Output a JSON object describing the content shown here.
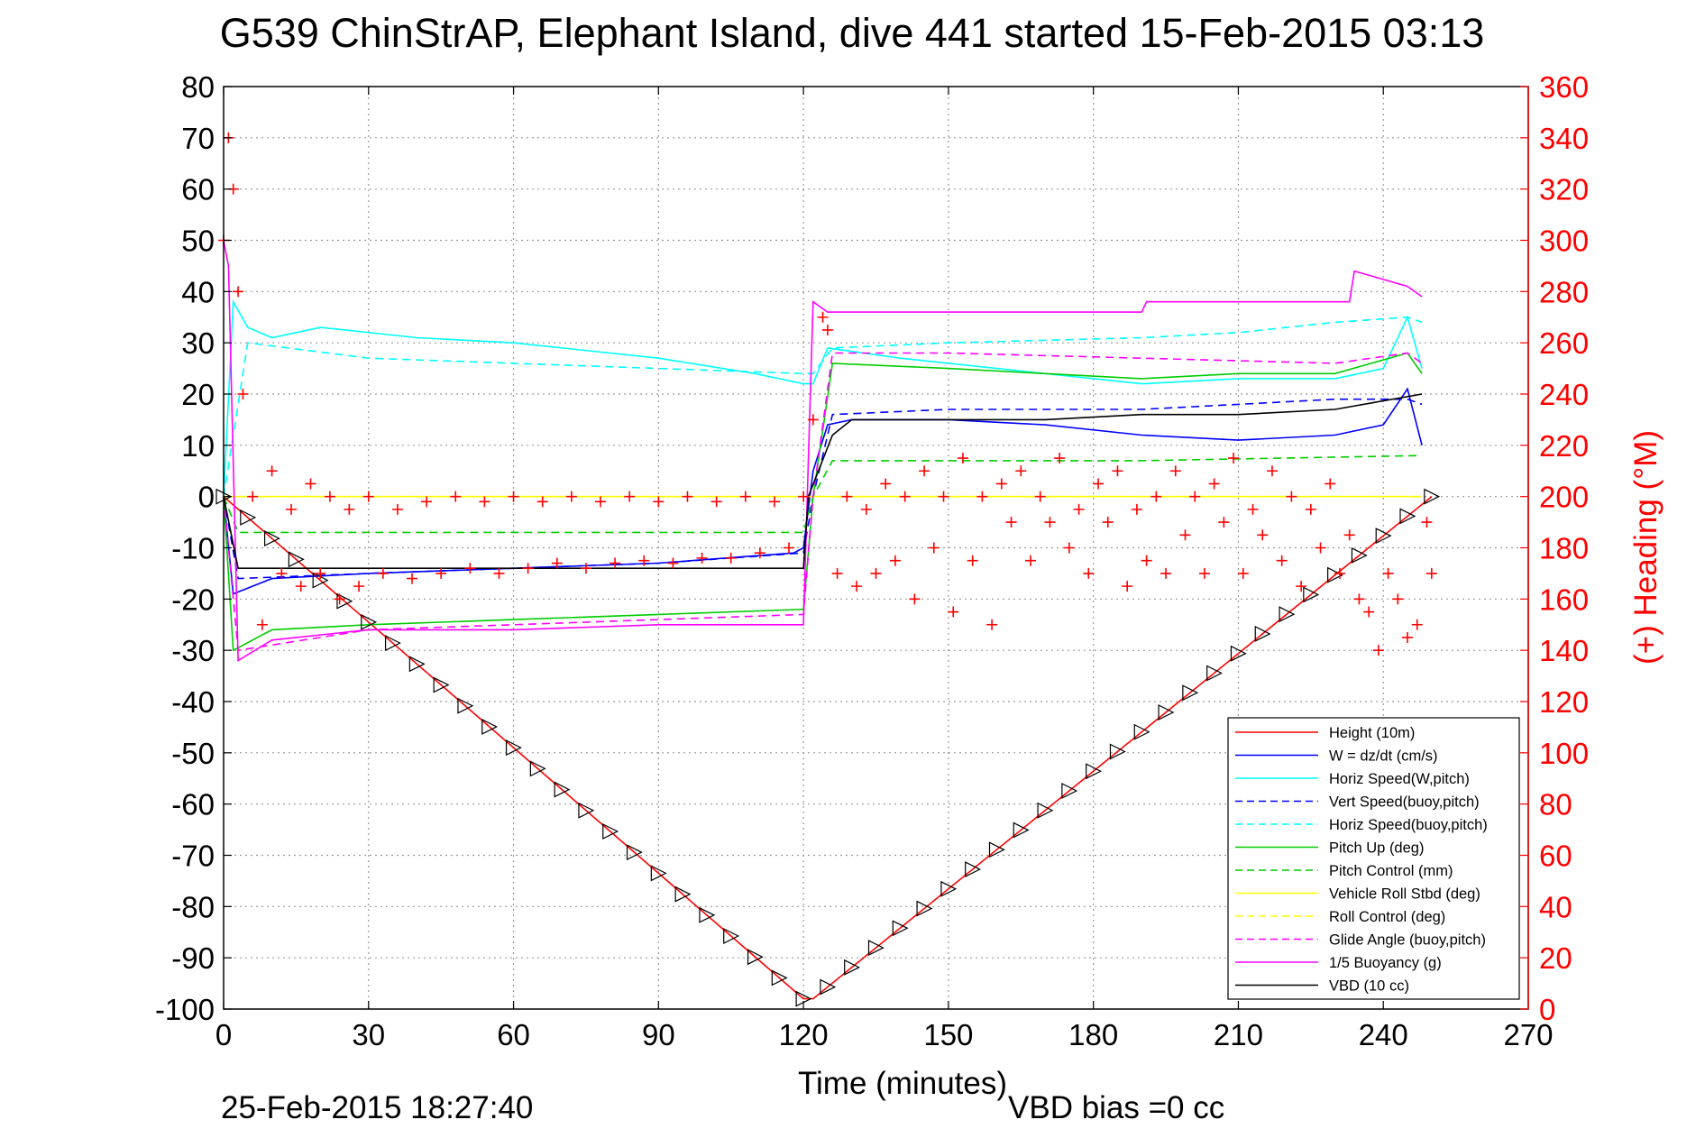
{
  "title": "G539 ChinStrAP, Elephant Island, dive 441 started 15-Feb-2015 03:13",
  "footer": {
    "timestamp": "25-Feb-2015 18:27:40",
    "vbd_bias": "VBD bias =0 cc"
  },
  "chart_data": {
    "type": "line",
    "title": "G539 ChinStrAP, Elephant Island, dive 441 started 15-Feb-2015 03:13",
    "xlabel": "Time (minutes)",
    "ylabel": "",
    "y2label": "(+) Heading (°M)",
    "xlim": [
      0,
      270
    ],
    "ylim": [
      -100,
      80
    ],
    "y2lim": [
      0,
      360
    ],
    "xticks": [
      0,
      30,
      60,
      90,
      120,
      150,
      180,
      210,
      240,
      270
    ],
    "yticks": [
      80,
      70,
      60,
      50,
      40,
      30,
      20,
      10,
      0,
      -10,
      -20,
      -30,
      -40,
      -50,
      -60,
      -70,
      -80,
      -90,
      -100
    ],
    "y2ticks": [
      360,
      340,
      320,
      300,
      280,
      260,
      240,
      220,
      200,
      180,
      160,
      140,
      120,
      100,
      80,
      60,
      40,
      20,
      0
    ],
    "grid": true,
    "legend_position": "bottom-right",
    "series": [
      {
        "name": "Height (10m)",
        "color": "#ff0000",
        "dash": "solid",
        "x": [
          0,
          120,
          122,
          250
        ],
        "y": [
          0,
          -98,
          -98,
          0
        ]
      },
      {
        "name": "W = dz/dt (cm/s)",
        "color": "#0000ff",
        "dash": "solid",
        "x": [
          0,
          2,
          10,
          30,
          60,
          90,
          118,
          120,
          122,
          125,
          130,
          150,
          170,
          190,
          210,
          230,
          240,
          245,
          248
        ],
        "y": [
          0,
          -19,
          -16,
          -15,
          -14,
          -13,
          -11,
          -10,
          5,
          14,
          15,
          15,
          14,
          12,
          11,
          12,
          14,
          21,
          10
        ]
      },
      {
        "name": "Horiz Speed(W,pitch)",
        "color": "#00ffff",
        "dash": "solid",
        "x": [
          0,
          2,
          5,
          10,
          20,
          40,
          60,
          90,
          110,
          120,
          122,
          125,
          140,
          170,
          190,
          210,
          230,
          240,
          245,
          248
        ],
        "y": [
          0,
          38,
          33,
          31,
          33,
          31,
          30,
          27,
          24,
          22,
          22,
          29,
          27,
          24,
          22,
          23,
          23,
          25,
          35,
          25
        ]
      },
      {
        "name": "Vert Speed(buoy,pitch)",
        "color": "#0000ff",
        "dash": "dashed",
        "x": [
          0,
          3,
          30,
          60,
          90,
          120,
          122,
          126,
          150,
          170,
          190,
          210,
          230,
          245,
          248
        ],
        "y": [
          0,
          -16,
          -15,
          -14,
          -13,
          -11,
          0,
          16,
          17,
          17,
          17,
          18,
          19,
          19,
          18
        ]
      },
      {
        "name": "Horiz Speed(buoy,pitch)",
        "color": "#00ffff",
        "dash": "dashed",
        "x": [
          0,
          5,
          30,
          60,
          90,
          120,
          122,
          126,
          150,
          190,
          210,
          230,
          245,
          248
        ],
        "y": [
          0,
          30,
          27,
          26,
          25,
          24,
          24,
          29,
          30,
          31,
          32,
          34,
          35,
          34
        ]
      },
      {
        "name": "Pitch Up (deg)",
        "color": "#00cc00",
        "dash": "solid",
        "x": [
          0,
          2,
          10,
          30,
          60,
          90,
          120,
          122,
          126,
          150,
          170,
          190,
          210,
          230,
          245,
          248
        ],
        "y": [
          0,
          -30,
          -26,
          -25,
          -24,
          -23,
          -22,
          0,
          26,
          25,
          24,
          23,
          24,
          24,
          28,
          24
        ]
      },
      {
        "name": "Pitch Control (mm)",
        "color": "#00cc00",
        "dash": "dashed",
        "x": [
          0,
          3,
          120,
          122,
          126,
          190,
          248
        ],
        "y": [
          0,
          -7,
          -7,
          0,
          7,
          7,
          8
        ]
      },
      {
        "name": "Vehicle Roll Stbd (deg)",
        "color": "#ffff00",
        "dash": "solid",
        "x": [
          0,
          120,
          122,
          248
        ],
        "y": [
          0,
          0,
          0,
          0
        ]
      },
      {
        "name": "Roll Control (deg)",
        "color": "#ffff00",
        "dash": "dashed",
        "x": [
          0,
          248
        ],
        "y": [
          0,
          0
        ]
      },
      {
        "name": "Glide Angle (buoy,pitch)",
        "color": "#ff00ff",
        "dash": "dashed",
        "x": [
          0,
          3,
          30,
          60,
          90,
          120,
          122,
          126,
          150,
          190,
          230,
          245,
          248
        ],
        "y": [
          0,
          -30,
          -26,
          -25,
          -24,
          -23,
          0,
          28,
          28,
          27,
          26,
          28,
          26
        ]
      },
      {
        "name": "1/5 Buoyancy (g)",
        "color": "#ff00ff",
        "dash": "solid",
        "x": [
          0,
          1,
          3,
          10,
          30,
          60,
          90,
          120,
          122,
          125,
          150,
          190,
          191,
          233,
          234,
          245,
          248
        ],
        "y": [
          50,
          45,
          -32,
          -28,
          -26,
          -26,
          -25,
          -25,
          38,
          36,
          36,
          36,
          38,
          38,
          44,
          41,
          39
        ]
      },
      {
        "name": "VBD (10 cc)",
        "color": "#000000",
        "dash": "solid",
        "x": [
          0,
          3,
          120,
          121,
          126,
          130,
          150,
          170,
          190,
          210,
          230,
          248
        ],
        "y": [
          0,
          -14,
          -14,
          0,
          12,
          15,
          15,
          15,
          16,
          16,
          17,
          20
        ]
      }
    ],
    "heading": {
      "name": "(+) Heading (°M)",
      "color": "#ff0000",
      "marker": "+",
      "axis": "right",
      "x": [
        0,
        1,
        2,
        3,
        4,
        6,
        8,
        10,
        12,
        14,
        16,
        18,
        20,
        22,
        24,
        26,
        28,
        30,
        33,
        36,
        39,
        42,
        45,
        48,
        51,
        54,
        57,
        60,
        63,
        66,
        69,
        72,
        75,
        78,
        81,
        84,
        87,
        90,
        93,
        96,
        99,
        102,
        105,
        108,
        111,
        114,
        117,
        120,
        122,
        124,
        125,
        127,
        129,
        131,
        133,
        135,
        137,
        139,
        141,
        143,
        145,
        147,
        149,
        151,
        153,
        155,
        157,
        159,
        161,
        163,
        165,
        167,
        169,
        171,
        173,
        175,
        177,
        179,
        181,
        183,
        185,
        187,
        189,
        191,
        193,
        195,
        197,
        199,
        201,
        203,
        205,
        207,
        209,
        211,
        213,
        215,
        217,
        219,
        221,
        223,
        225,
        227,
        229,
        231,
        233,
        235,
        237,
        239,
        241,
        243,
        245,
        247,
        249,
        250
      ],
      "y": [
        300,
        340,
        320,
        280,
        240,
        200,
        150,
        210,
        170,
        195,
        165,
        205,
        170,
        200,
        160,
        195,
        165,
        200,
        170,
        195,
        168,
        198,
        170,
        200,
        172,
        198,
        170,
        200,
        172,
        198,
        174,
        200,
        172,
        198,
        174,
        200,
        175,
        198,
        174,
        200,
        176,
        198,
        176,
        200,
        178,
        198,
        180,
        200,
        230,
        270,
        265,
        170,
        200,
        165,
        195,
        170,
        205,
        175,
        200,
        160,
        210,
        180,
        200,
        155,
        215,
        175,
        200,
        150,
        205,
        190,
        210,
        175,
        200,
        190,
        215,
        180,
        195,
        170,
        205,
        190,
        210,
        165,
        195,
        175,
        200,
        170,
        210,
        185,
        200,
        170,
        205,
        190,
        215,
        170,
        195,
        185,
        210,
        175,
        200,
        165,
        195,
        180,
        205,
        170,
        185,
        160,
        155,
        140,
        170,
        160,
        145,
        150,
        190,
        170
      ]
    }
  },
  "legend": {
    "items": [
      {
        "label": "Height (10m)",
        "color": "#ff0000",
        "dash": "solid"
      },
      {
        "label": "W = dz/dt (cm/s)",
        "color": "#0000ff",
        "dash": "solid"
      },
      {
        "label": "Horiz Speed(W,pitch)",
        "color": "#00ffff",
        "dash": "solid"
      },
      {
        "label": "Vert Speed(buoy,pitch)",
        "color": "#0000ff",
        "dash": "dashed"
      },
      {
        "label": "Horiz Speed(buoy,pitch)",
        "color": "#00ffff",
        "dash": "dashed"
      },
      {
        "label": "Pitch Up (deg)",
        "color": "#00cc00",
        "dash": "solid"
      },
      {
        "label": "Pitch Control (mm)",
        "color": "#00cc00",
        "dash": "dashed"
      },
      {
        "label": "Vehicle Roll Stbd (deg)",
        "color": "#ffff00",
        "dash": "solid"
      },
      {
        "label": "Roll Control (deg)",
        "color": "#ffff00",
        "dash": "dashed"
      },
      {
        "label": "Glide Angle (buoy,pitch)",
        "color": "#ff00ff",
        "dash": "dashed"
      },
      {
        "label": "1/5 Buoyancy (g)",
        "color": "#ff00ff",
        "dash": "solid"
      },
      {
        "label": "VBD (10 cc)",
        "color": "#000000",
        "dash": "solid"
      }
    ]
  }
}
